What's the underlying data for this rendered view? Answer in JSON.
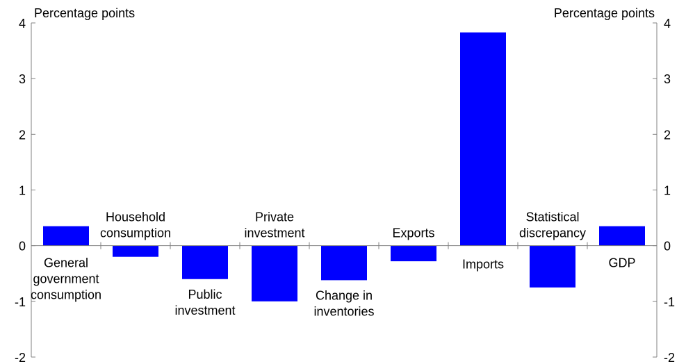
{
  "chart_data": {
    "type": "bar",
    "left_unit_label": "Percentage points",
    "right_unit_label": "Percentage points",
    "categories": [
      [
        "General",
        "government",
        "consumption"
      ],
      [
        "Household",
        "consumption"
      ],
      [
        "Public",
        "investment"
      ],
      [
        "Private",
        "investment"
      ],
      [
        "Change in",
        "inventories"
      ],
      [
        "Exports"
      ],
      [
        "Imports"
      ],
      [
        "Statistical",
        "discrepancy"
      ],
      [
        "GDP"
      ]
    ],
    "values": [
      0.35,
      -0.2,
      -0.6,
      -1.0,
      -0.62,
      -0.28,
      3.83,
      -0.75,
      0.35
    ],
    "ylim": [
      -2,
      4
    ],
    "yticks": [
      "-2",
      "-1",
      "0",
      "1",
      "2",
      "3",
      "4"
    ],
    "right_axis": true,
    "grid": false,
    "bar_color": "#0000ff",
    "axis_color": "#808080"
  }
}
